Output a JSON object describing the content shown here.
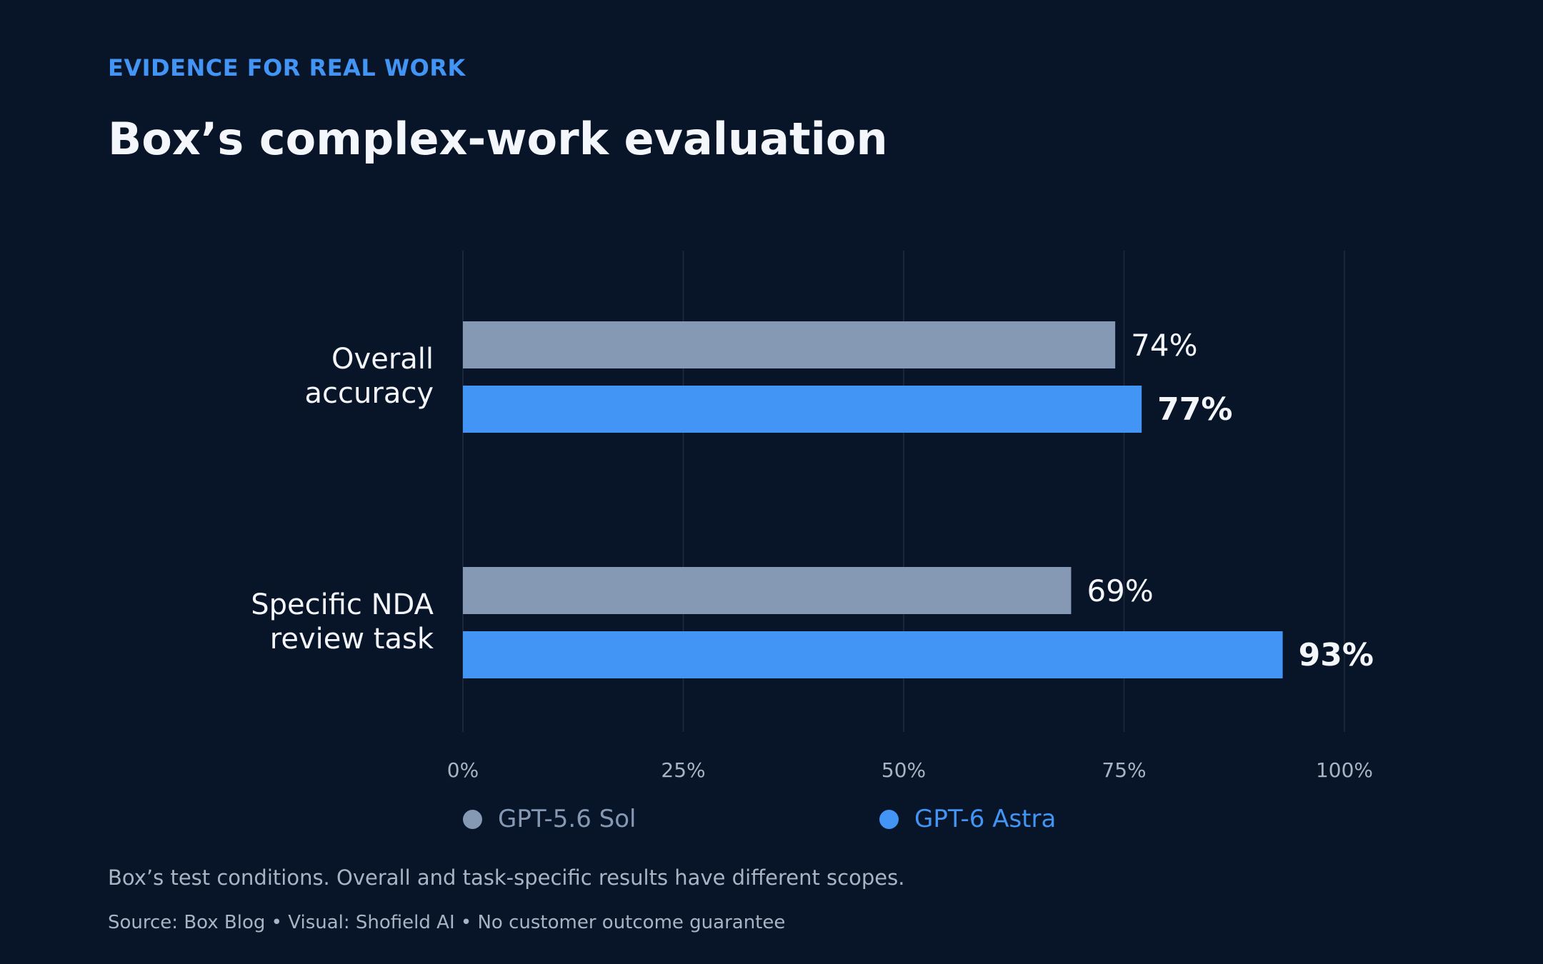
{
  "header": {
    "eyebrow": "EVIDENCE FOR REAL WORK",
    "title": "Box’s complex-work evaluation"
  },
  "chart_data": {
    "type": "bar",
    "orientation": "horizontal",
    "categories": [
      [
        "Overall",
        "accuracy"
      ],
      [
        "Specific NDA",
        "review task"
      ]
    ],
    "series": [
      {
        "name": "GPT-5.6 Sol",
        "values": [
          74,
          69
        ],
        "color": "#8599b4",
        "label_weight": "normal"
      },
      {
        "name": "GPT-6 Astra",
        "values": [
          77,
          93
        ],
        "color": "#4294f5",
        "label_weight": "bold"
      }
    ],
    "value_suffix": "%",
    "xlim": [
      0,
      100
    ],
    "xticks": [
      0,
      25,
      50,
      75,
      100
    ],
    "xtick_labels": [
      "0%",
      "25%",
      "50%",
      "75%",
      "100%"
    ],
    "grid": "vertical",
    "legend_position": "bottom"
  },
  "footer": {
    "note": "Box’s test conditions. Overall and task-specific results have different scopes.",
    "source": "Source: Box Blog  •  Visual: Shofield AI  •  No customer outcome guarantee"
  },
  "colors": {
    "background": "#081427",
    "accent": "#4294f5",
    "secondary_series": "#8599b4",
    "text": "#f3f6fb",
    "muted_text": "#a7b4c6",
    "grid": "#1f2c3f"
  }
}
